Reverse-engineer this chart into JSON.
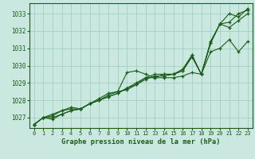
{
  "bg_color": "#cbe8e0",
  "grid_color": "#99ccbb",
  "line_color": "#1a5c1a",
  "marker_color": "#1a5c1a",
  "xlabel": "Graphe pression niveau de la mer (hPa)",
  "ylim": [
    1026.4,
    1033.6
  ],
  "xlim": [
    -0.5,
    23.5
  ],
  "yticks": [
    1027,
    1028,
    1029,
    1030,
    1031,
    1032,
    1033
  ],
  "xticks": [
    0,
    1,
    2,
    3,
    4,
    5,
    6,
    7,
    8,
    9,
    10,
    11,
    12,
    13,
    14,
    15,
    16,
    17,
    18,
    19,
    20,
    21,
    22,
    23
  ],
  "series": [
    [
      1026.6,
      1027.0,
      1027.0,
      1027.2,
      1027.4,
      1027.5,
      1027.8,
      1028.0,
      1028.3,
      1028.5,
      1029.6,
      1029.7,
      1029.5,
      1029.3,
      1029.5,
      1029.5,
      1029.7,
      1030.6,
      1029.5,
      1031.4,
      1032.4,
      1033.0,
      1032.8,
      1033.3
    ],
    [
      1026.6,
      1027.0,
      1026.9,
      1027.2,
      1027.4,
      1027.5,
      1027.8,
      1028.1,
      1028.4,
      1028.5,
      1028.6,
      1028.9,
      1029.3,
      1029.3,
      1029.3,
      1029.3,
      1029.4,
      1029.6,
      1029.5,
      1030.8,
      1031.0,
      1031.5,
      1030.8,
      1031.4
    ],
    [
      1026.6,
      1027.0,
      1027.2,
      1027.4,
      1027.6,
      1027.5,
      1027.8,
      1028.0,
      1028.2,
      1028.4,
      1028.7,
      1029.0,
      1029.3,
      1029.5,
      1029.5,
      1029.5,
      1029.7,
      1030.5,
      1029.5,
      1031.3,
      1032.4,
      1032.2,
      1032.6,
      1033.0
    ],
    [
      1026.6,
      1027.0,
      1027.1,
      1027.4,
      1027.5,
      1027.5,
      1027.8,
      1028.0,
      1028.2,
      1028.4,
      1028.7,
      1028.9,
      1029.2,
      1029.4,
      1029.4,
      1029.5,
      1029.8,
      1030.6,
      1029.5,
      1031.3,
      1032.4,
      1032.5,
      1033.0,
      1033.2
    ]
  ]
}
